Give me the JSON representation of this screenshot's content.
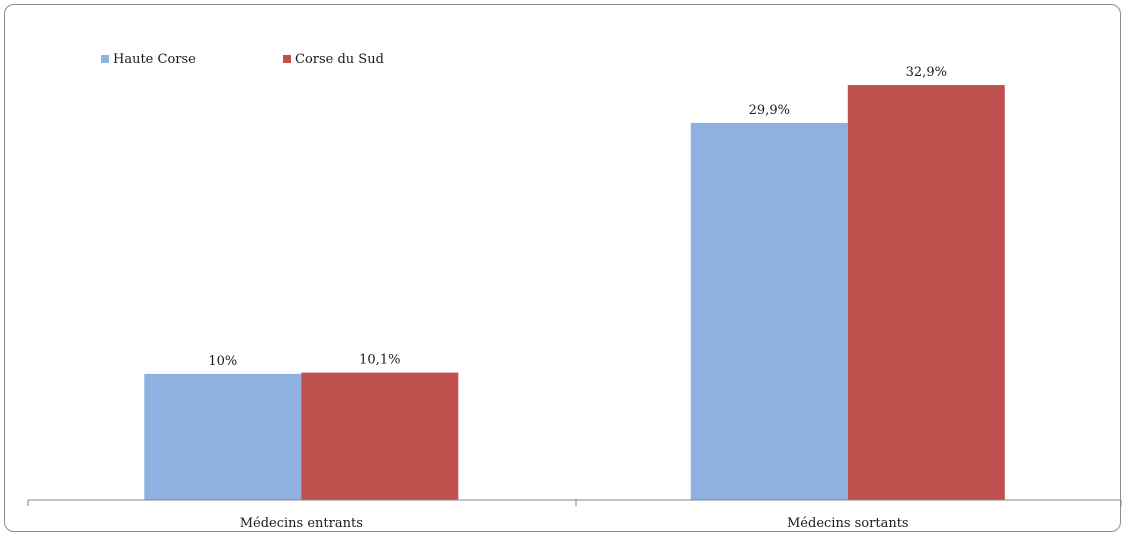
{
  "chart_data": {
    "type": "bar",
    "title": "",
    "xlabel": "",
    "ylabel": "",
    "categories": [
      "Médecins entrants",
      "Médecins sortants"
    ],
    "series": [
      {
        "name": "Haute Corse",
        "color": "#8EB1E1",
        "values": [
          10,
          29.9
        ],
        "labels": [
          "10%",
          "29,9%"
        ]
      },
      {
        "name": "Corse du Sud",
        "color": "#C0504D",
        "values": [
          10.1,
          32.9
        ],
        "labels": [
          "10,1%",
          "32,9%"
        ]
      }
    ],
    "ylim": [
      0,
      36.4
    ],
    "grid": false,
    "legend_position": "top-left"
  }
}
